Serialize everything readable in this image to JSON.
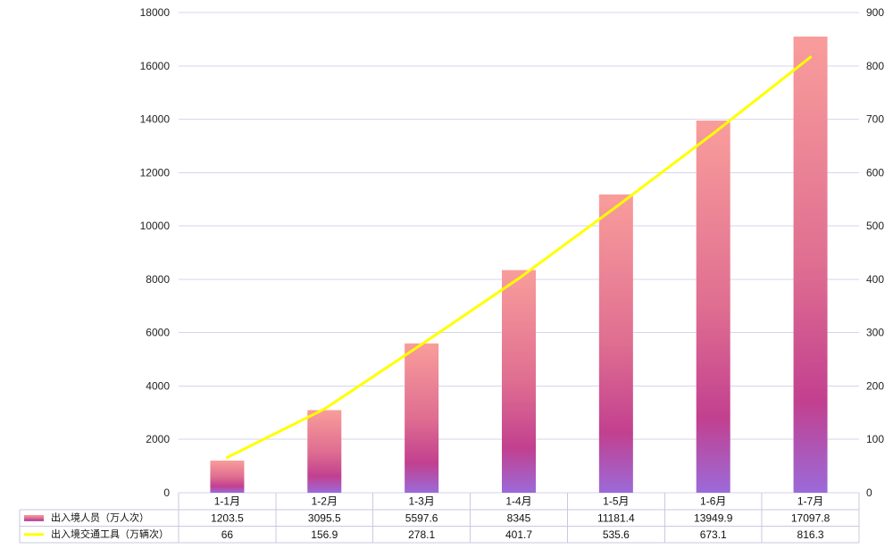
{
  "chart_data": {
    "type": "bar",
    "categories": [
      "1-1月",
      "1-2月",
      "1-3月",
      "1-4月",
      "1-5月",
      "1-6月",
      "1-7月"
    ],
    "series": [
      {
        "name": "出入境人员（万人次）",
        "type": "bar",
        "axis": "left",
        "values": [
          1203.5,
          3095.5,
          5597.6,
          8345,
          11181.4,
          13949.9,
          17097.8
        ],
        "gradient": [
          "#f99d9b",
          "#df6e91",
          "#c2408f",
          "#9b6ad9"
        ]
      },
      {
        "name": "出入境交通工具（万辆次）",
        "type": "line",
        "axis": "right",
        "values": [
          66,
          156.9,
          278.1,
          401.7,
          535.6,
          673.1,
          816.3
        ],
        "color": "#ffff00"
      }
    ],
    "y_left": {
      "ylim": [
        0,
        18000
      ],
      "ticks": [
        0,
        2000,
        4000,
        6000,
        8000,
        10000,
        12000,
        14000,
        16000,
        18000
      ]
    },
    "y_right": {
      "ylim": [
        0,
        900
      ],
      "ticks": [
        0,
        100,
        200,
        300,
        400,
        500,
        600,
        700,
        800,
        900
      ]
    },
    "grid": true,
    "grid_color": "#d6d6ec",
    "legend": "data-table-left",
    "data_table": true
  }
}
